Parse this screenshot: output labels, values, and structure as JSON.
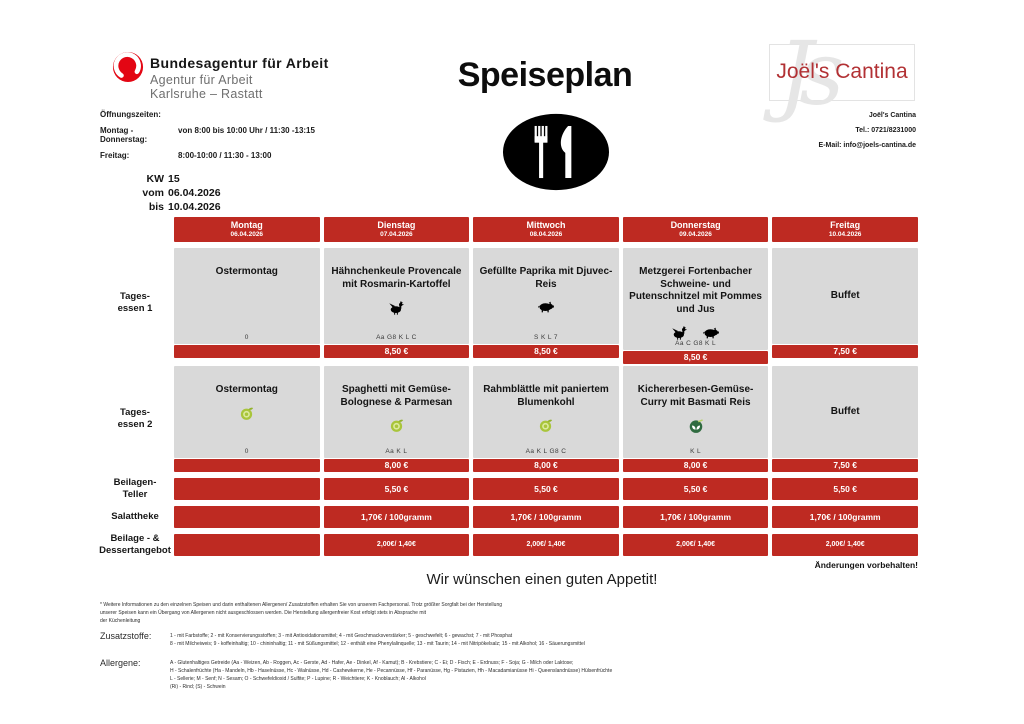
{
  "colors": {
    "table_red": "#be2a22",
    "cell_gray": "#d9d9d9",
    "ba_red": "#e30613",
    "brand_red": "#b23134"
  },
  "header": {
    "ba": {
      "title": "Bundesagentur für Arbeit",
      "subtitle1": "Agentur für Arbeit",
      "subtitle2": "Karlsruhe – Rastatt"
    },
    "hours": {
      "label": "Öffnungszeiten:",
      "rows": [
        {
          "day": "Montag - Donnerstag:",
          "time": "von 8:00 bis 10:00 Uhr  / 11:30 -13:15"
        },
        {
          "day": "Freitag:",
          "time": "8:00-10:00 / 11:30 - 13:00"
        }
      ]
    },
    "title": "Speiseplan",
    "cantina": {
      "brand": "Joël's Cantina",
      "watermark": "Js",
      "name": "Joël's Cantina",
      "tel": "Tel.: 0721/8231000",
      "email": "E-Mail: info@joels-cantina.de"
    },
    "week": {
      "rows": [
        {
          "label": "KW",
          "value": "15"
        },
        {
          "label": "vom",
          "value": "06.04.2026"
        },
        {
          "label": "bis",
          "value": "10.04.2026"
        }
      ]
    }
  },
  "menu": {
    "days": [
      {
        "name": "Montag",
        "date": "06.04.2026"
      },
      {
        "name": "Dienstag",
        "date": "07.04.2026"
      },
      {
        "name": "Mittwoch",
        "date": "08.04.2026"
      },
      {
        "name": "Donnerstag",
        "date": "09.04.2026"
      },
      {
        "name": "Freitag",
        "date": "10.04.2026"
      }
    ],
    "rows": [
      {
        "label": [
          "Tages-",
          "essen 1"
        ],
        "cells": [
          {
            "title": "Ostermontag",
            "icons": [],
            "code": "0",
            "price": ""
          },
          {
            "title": "Hähnchenkeule Provencale mit Rosmarin-Kartoffel",
            "icons": [
              "chicken-icon"
            ],
            "code": "Aa G8 K L C",
            "price": "8,50 €"
          },
          {
            "title": "Gefüllte Paprika mit Djuvec-Reis",
            "icons": [
              "pig-icon"
            ],
            "code": "S K L 7",
            "price": "8,50 €"
          },
          {
            "title": "Metzgerei Fortenbacher Schweine- und Putenschnitzel mit Pommes und Jus",
            "icons": [
              "chicken-icon",
              "pig-icon"
            ],
            "code": "Aa C G8 K L",
            "price": "8,50 €"
          },
          {
            "title": "Buffet",
            "icons": [],
            "code": "",
            "price": "7,50 €"
          }
        ]
      },
      {
        "label": [
          "Tages-",
          "essen 2"
        ],
        "cells": [
          {
            "title": "Ostermontag",
            "icons": [
              "vegetarian-icon"
            ],
            "code": "0",
            "price": ""
          },
          {
            "title": "Spaghetti mit Gemüse-Bolognese & Parmesan",
            "icons": [
              "vegetarian-icon"
            ],
            "code": "Aa  K L",
            "price": "8,00 €"
          },
          {
            "title": "Rahmblättle mit paniertem Blumenkohl",
            "icons": [
              "vegetarian-icon"
            ],
            "code": "Aa K L G8 C",
            "price": "8,00 €"
          },
          {
            "title": "Kichererbesen-Gemüse-Curry mit Basmati Reis",
            "icons": [
              "vegan-icon"
            ],
            "code": "K L",
            "price": "8,00 €"
          },
          {
            "title": "Buffet",
            "icons": [],
            "code": "",
            "price": "7,50 €"
          }
        ]
      }
    ],
    "price_rows": [
      {
        "label": [
          "Beilagen-",
          "Teller"
        ],
        "prices": [
          "",
          "5,50 €",
          "5,50 €",
          "5,50 €",
          "5,50 €"
        ]
      },
      {
        "label": [
          "Salattheke"
        ],
        "prices": [
          "",
          "1,70€ / 100gramm",
          "1,70€ / 100gramm",
          "1,70€ / 100gramm",
          "1,70€ / 100gramm"
        ]
      },
      {
        "label": [
          "Beilage - &",
          "Dessertangebot"
        ],
        "prices": [
          "",
          "2,00€/ 1,40€",
          "2,00€/ 1,40€",
          "2,00€/ 1,40€",
          "2,00€/ 1,40€"
        ]
      }
    ]
  },
  "footer": {
    "changes": "Änderungen vorbehalten!",
    "appetit": "Wir wünschen einen guten Appetit!",
    "note_lines": [
      "* Weitere Informationen zu den einzelnen Speisen und darin enthaltenen Allergenen/ Zusatzstoffen erhalten Sie von unserem Fachpersonal. Trotz größter Sorgfalt bei der Herstellung",
      "unserer Speisen kann ein Übergang von Allergenen nicht ausgeschlossen werden. Die Herstellung allergenfreier Kost erfolgt stets in Absprache mit",
      "der Küchenleitung"
    ],
    "zusatzstoffe": {
      "label": "Zusatzstoffe:",
      "lines": [
        "1 - mit Farbstoffe; 2 - mit Konservierungsstoffen; 3 - mit Antioxidationsmittel; 4 - mit Geschmacksverstärker; 5 - geschwefelt; 6 - gewachst; 7 - mit Phosphat",
        "8 - mit Milcheiweis; 9 - koffeinhaltig; 10 - chininhaltig; 11 - mit Süßungsmittel; 12 - enthält eine Phenylalinquelle; 13 - mit Taurin; 14 - mit Nitripökelsalz; 15 - mit Alkohol; 16 - Säuerungsmittel"
      ]
    },
    "allergene": {
      "label": "Allergene:",
      "lines": [
        "A - Glutenhaltiges Getreide (Aa - Weizen, Ab - Roggen, Ac - Gerste, Ad - Hafer, Ae - Dinkel, Af - Kamut); B - Krebstiere; C - Ei; D - Fisch; E - Erdnuss; F - Soja; G - Milch oder Laktose;",
        "H - Schalenfrüchte (Ha - Mandeln, Hb - Haselnüsse, Hc - Walnüsse, Hd - Cashewkerne, He - Pecannüsse, Hf - Paranüsse, Hg - Pistazien, Hh - Macadamianüsse Hi - Queenslandnüsse) Hülsenfrüchte",
        "L - Sellerie; M - Senf; N - Sesam; O - Schwefeldioxid / Sulfite; P - Lupine; R - Weichtiere; K - Knoblauch; Al - Alkohol",
        "(Ri) - Rind; (S) - Schwein"
      ]
    }
  }
}
